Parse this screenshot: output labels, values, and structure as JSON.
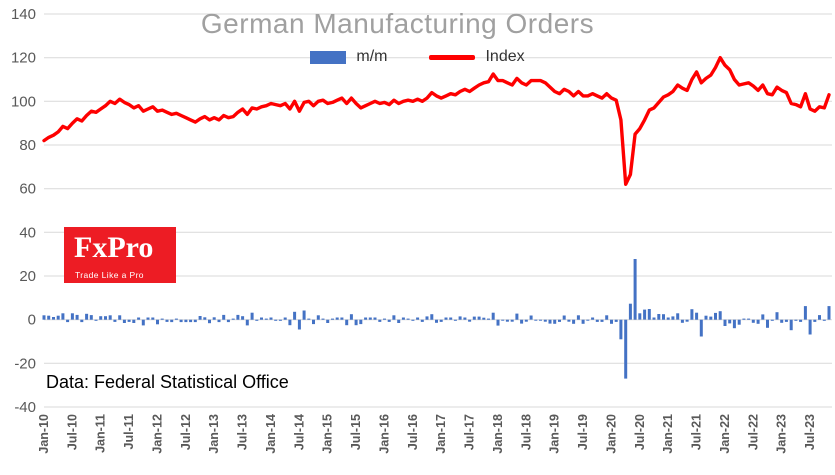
{
  "chart_data": {
    "type": "combo",
    "title": "German Manufacturing Orders",
    "grid": true,
    "legend_position": "top",
    "ylim": [
      -40,
      140
    ],
    "yticks": [
      -40,
      -20,
      0,
      20,
      40,
      60,
      80,
      100,
      120,
      140
    ],
    "x_tick_step": 6,
    "x_tick_labels": [
      "Jan-10",
      "Jul-10",
      "Jan-11",
      "Jul-11",
      "Jan-12",
      "Jul-12",
      "Jan-13",
      "Jul-13",
      "Jan-14",
      "Jul-14",
      "Jan-15",
      "Jul-15",
      "Jan-16",
      "Jul-16",
      "Jan-17",
      "Jul-17",
      "Jan-18",
      "Jul-18",
      "Jan-19",
      "Jul-19",
      "Jan-20",
      "Jul-20",
      "Jan-21",
      "Jul-21",
      "Jan-22",
      "Jul-22",
      "Jan-23",
      "Jul-23"
    ],
    "series": [
      {
        "name": "m/m",
        "type": "bar",
        "color": "#4472C4",
        "values": [
          2.0,
          1.8,
          1.2,
          1.8,
          2.9,
          -1.1,
          2.9,
          2.2,
          -1.1,
          2.7,
          2.1,
          -0.5,
          1.6,
          1.6,
          2.0,
          -1.0,
          2.0,
          -1.5,
          -1.0,
          -1.5,
          1.0,
          -2.6,
          1.0,
          1.0,
          -2.1,
          0.5,
          -1.0,
          -1.1,
          0.5,
          -1.1,
          -1.1,
          -1.1,
          -1.1,
          1.7,
          1.1,
          -1.6,
          1.1,
          -1.1,
          2.2,
          -1.1,
          0.5,
          2.2,
          1.6,
          -2.6,
          3.2,
          -0.5,
          1.0,
          0.5,
          1.0,
          -0.5,
          -0.5,
          1.0,
          -2.5,
          3.6,
          -4.5,
          4.2,
          0.5,
          -2.0,
          2.0,
          0.5,
          -1.5,
          0.5,
          1.0,
          1.0,
          -2.5,
          2.5,
          -2.5,
          -2.0,
          1.0,
          1.0,
          1.0,
          -1.0,
          0.5,
          -1.0,
          2.0,
          -1.5,
          1.0,
          0.5,
          -0.5,
          1.0,
          -1.0,
          1.5,
          2.5,
          -1.4,
          -1.0,
          1.0,
          1.0,
          -0.5,
          1.5,
          1.0,
          -0.9,
          1.4,
          1.4,
          0.9,
          0.5,
          3.2,
          -2.7,
          0.0,
          -0.9,
          -0.9,
          2.8,
          -1.8,
          -0.9,
          1.9,
          0.0,
          0.0,
          -0.9,
          -1.8,
          -1.9,
          -1.0,
          1.9,
          -0.9,
          -1.9,
          2.0,
          -1.9,
          0.0,
          1.0,
          -1.0,
          -1.0,
          2.0,
          -1.9,
          -1.0,
          -9.0,
          -27.0,
          7.3,
          27.8,
          2.9,
          4.6,
          4.9,
          1.0,
          2.6,
          2.5,
          1.0,
          1.5,
          2.9,
          -1.4,
          -0.9,
          4.8,
          3.2,
          -7.7,
          1.8,
          1.4,
          3.1,
          3.9,
          -2.9,
          -1.7,
          -3.9,
          -2.3,
          0.5,
          0.5,
          -1.4,
          -1.9,
          2.4,
          -3.7,
          -0.5,
          3.4,
          -1.4,
          -1.0,
          -4.8,
          -0.5,
          -1.0,
          6.2,
          -6.8,
          -1.0,
          2.1,
          -0.5,
          6.2
        ]
      },
      {
        "name": "Index",
        "type": "line",
        "color": "#FE0000",
        "values": [
          82,
          83.5,
          84.5,
          86,
          88.5,
          87.5,
          90,
          92,
          91,
          93.5,
          95.5,
          95,
          96.5,
          98,
          100,
          99,
          101,
          99.5,
          98.5,
          97,
          98,
          95.5,
          96.5,
          97.5,
          95.5,
          96,
          95,
          94,
          94.5,
          93.5,
          92.5,
          91.5,
          90.5,
          92,
          93,
          91.5,
          92.5,
          91.5,
          93.5,
          92.5,
          93,
          95,
          96.5,
          94,
          97,
          96.5,
          97.5,
          98,
          99,
          98.5,
          98,
          99,
          96.5,
          100,
          95.5,
          99.5,
          100,
          98,
          100,
          100.5,
          99,
          99.5,
          100.5,
          101.5,
          99,
          101.5,
          99,
          97,
          98,
          99,
          100,
          99,
          99.5,
          98.5,
          100.5,
          99,
          100,
          100.5,
          100,
          101,
          100,
          101.5,
          104,
          102.5,
          101.5,
          102.5,
          103.5,
          103,
          104.5,
          105.5,
          104.5,
          106,
          107.5,
          108.5,
          109,
          112.5,
          109.5,
          109.5,
          108.5,
          107.5,
          110.5,
          108.5,
          107.5,
          109.5,
          109.5,
          109.5,
          108.5,
          106.5,
          104.5,
          103.5,
          105.5,
          104.5,
          102.5,
          104.5,
          102.5,
          102.5,
          103.5,
          102.5,
          101.5,
          103.5,
          101.5,
          100.5,
          91.5,
          62,
          66.5,
          85,
          87.5,
          91.5,
          96,
          97,
          99.5,
          102,
          103,
          104.5,
          107.5,
          106,
          105,
          110,
          113.5,
          108.5,
          110.5,
          112,
          115.5,
          120,
          116.5,
          114.5,
          110,
          107.5,
          108,
          108.5,
          107,
          105,
          107.5,
          103.5,
          103,
          106.5,
          105,
          104,
          99,
          98.5,
          97.5,
          103.5,
          96.5,
          95.5,
          97.5,
          97,
          103
        ]
      }
    ],
    "axis_text_color": "#595959",
    "gridline_color": "#d9d9d9",
    "title_color": "#a0a0a0"
  },
  "logo": {
    "brand": "FxPro",
    "tagline": "Trade Like a Pro",
    "bg_color": "#ED1C24"
  },
  "footer": {
    "source": "Data: Federal Statistical Office"
  }
}
